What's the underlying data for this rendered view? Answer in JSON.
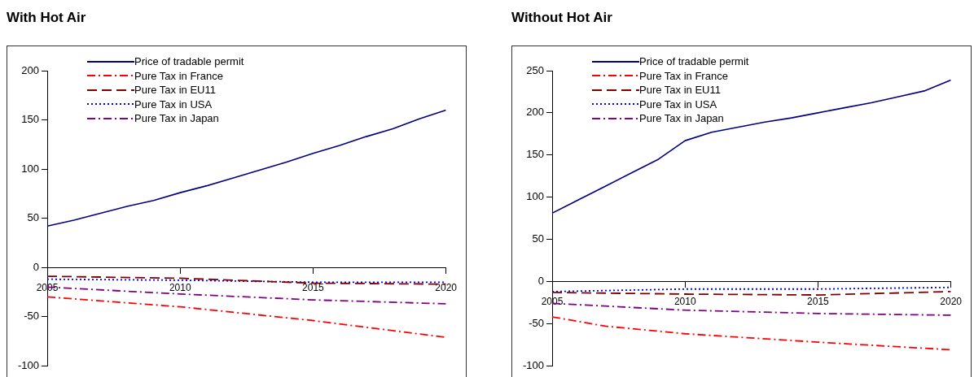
{
  "chart_data": [
    {
      "type": "line",
      "title": "With Hot Air",
      "x": [
        2005,
        2006,
        2007,
        2008,
        2009,
        2010,
        2011,
        2012,
        2013,
        2014,
        2015,
        2016,
        2017,
        2018,
        2019,
        2020
      ],
      "xlim": [
        2005,
        2020
      ],
      "xticks": [
        2005,
        2010,
        2015,
        2020
      ],
      "ylim": [
        -100,
        200
      ],
      "yticks": [
        -100,
        -50,
        0,
        50,
        100,
        150,
        200
      ],
      "legend": "top left",
      "marker": "none",
      "series": [
        {
          "name": "Price of tradable permit",
          "color": "#000080",
          "line_style": "solid",
          "values": [
            42,
            48,
            55,
            62,
            68,
            76,
            83,
            91,
            99,
            107,
            116,
            124,
            133,
            141,
            151,
            160
          ]
        },
        {
          "name": "Pure Tax in France",
          "color": "#ff0000",
          "line_style": "dashdot",
          "x": [
            2005,
            2010,
            2015,
            2020
          ],
          "values": [
            -30,
            -40,
            -54,
            -71
          ]
        },
        {
          "name": "Pure Tax in EU11",
          "color": "#800000",
          "line_style": "dashed",
          "x": [
            2005,
            2010,
            2015,
            2020
          ],
          "values": [
            -9,
            -11,
            -16,
            -17
          ]
        },
        {
          "name": "Pure Tax in USA",
          "color": "#0000ff",
          "line_style": "dotted",
          "x": [
            2005,
            2010,
            2015,
            2020
          ],
          "values": [
            -12,
            -13,
            -15,
            -15
          ]
        },
        {
          "name": "Pure Tax in Japan",
          "color": "#800080",
          "line_style": "dashdot",
          "x": [
            2005,
            2010,
            2015,
            2020
          ],
          "values": [
            -20,
            -27,
            -33,
            -37
          ]
        }
      ]
    },
    {
      "type": "line",
      "title": "Without Hot Air",
      "x": [
        2005,
        2006,
        2007,
        2008,
        2009,
        2010,
        2011,
        2012,
        2013,
        2014,
        2015,
        2016,
        2017,
        2018,
        2019,
        2020
      ],
      "xlim": [
        2005,
        2020
      ],
      "xticks": [
        2005,
        2010,
        2015,
        2020
      ],
      "ylim": [
        -100,
        250
      ],
      "yticks": [
        -100,
        -50,
        0,
        50,
        100,
        150,
        200,
        250
      ],
      "legend": "top left",
      "marker": "none",
      "series": [
        {
          "name": "Price of tradable permit",
          "color": "#000080",
          "line_style": "solid",
          "values": [
            81,
            97,
            113,
            129,
            145,
            167,
            177,
            183,
            189,
            194,
            200,
            206,
            212,
            219,
            226,
            239
          ]
        },
        {
          "name": "Pure Tax in France",
          "color": "#ff0000",
          "line_style": "dashdot",
          "x": [
            2005,
            2007,
            2010,
            2012,
            2015,
            2020
          ],
          "values": [
            -42,
            -53,
            -62,
            -66,
            -72,
            -81
          ]
        },
        {
          "name": "Pure Tax in EU11",
          "color": "#800000",
          "line_style": "dashed",
          "x": [
            2005,
            2010,
            2015,
            2020
          ],
          "values": [
            -13,
            -15,
            -16,
            -12
          ]
        },
        {
          "name": "Pure Tax in USA",
          "color": "#0000ff",
          "line_style": "dotted",
          "x": [
            2005,
            2010,
            2015,
            2020
          ],
          "values": [
            -12,
            -9,
            -9,
            -7
          ]
        },
        {
          "name": "Pure Tax in Japan",
          "color": "#800080",
          "line_style": "dashdot",
          "x": [
            2005,
            2010,
            2015,
            2020
          ],
          "values": [
            -26,
            -34,
            -38,
            -40
          ]
        }
      ]
    }
  ]
}
